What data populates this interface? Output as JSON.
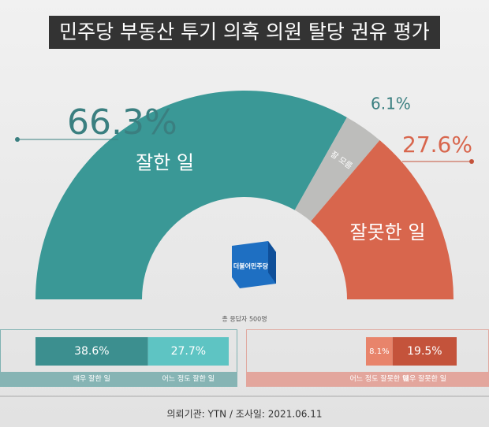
{
  "chart_data": [
    {
      "type": "pie",
      "title": "민주당 부동산 투기 의혹 의원 탈당 권유 평가",
      "categories": [
        "잘한 일",
        "잘 모름",
        "잘못한 일"
      ],
      "values": [
        66.3,
        6.1,
        27.6
      ],
      "value_labels": [
        "66.3%",
        "6.1%",
        "27.6%"
      ],
      "colors": [
        "#3a9896",
        "#bdbdbb",
        "#d8664d"
      ],
      "note": "총 응답자 500명"
    },
    {
      "type": "stacked-bar",
      "series": [
        {
          "name": "매우 잘한 일",
          "color": "#3c8f8f",
          "values": [
            38.6
          ],
          "value_labels": [
            "38.6%"
          ]
        },
        {
          "name": "어느 정도 잘한 일",
          "color": "#5ec4c3",
          "values": [
            27.7
          ],
          "value_labels": [
            "27.7%"
          ]
        }
      ]
    },
    {
      "type": "stacked-bar",
      "series": [
        {
          "name": "어느 정도 잘못한 일",
          "color": "#e8846b",
          "values": [
            8.1
          ],
          "value_labels": [
            "8.1%"
          ]
        },
        {
          "name": "매우 잘못한 일",
          "color": "#c4533b",
          "values": [
            19.5
          ],
          "value_labels": [
            "19.5%"
          ]
        }
      ]
    }
  ],
  "logo": "더불어민주당",
  "source": "의뢰기관: YTN / 조사일: 2021.06.11"
}
